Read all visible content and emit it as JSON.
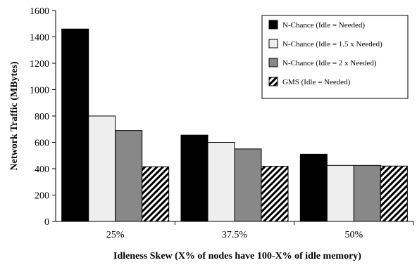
{
  "chart_data": {
    "type": "bar",
    "title": "",
    "xlabel": "Idleness Skew (X% of nodes have 100-X% of idle memory)",
    "ylabel": "Network Traffic (MBytes)",
    "ylim": [
      0,
      1600
    ],
    "yticks": [
      0,
      200,
      400,
      600,
      800,
      1000,
      1200,
      1400,
      1600
    ],
    "categories": [
      "25%",
      "37.5%",
      "50%"
    ],
    "series": [
      {
        "name": "N-Chance (Idle = Needed)",
        "values": [
          1460,
          655,
          510
        ],
        "color": "#000000",
        "pattern": "solid"
      },
      {
        "name": "N-Chance (Idle = 1.5 x Needed)",
        "values": [
          800,
          600,
          425
        ],
        "color": "#eeeeee",
        "pattern": "solid"
      },
      {
        "name": "N-Chance (Idle = 2 x Needed)",
        "values": [
          690,
          550,
          425
        ],
        "color": "#888888",
        "pattern": "solid"
      },
      {
        "name": "GMS (Idle = Needed)",
        "values": [
          415,
          418,
          420
        ],
        "color": "#000000",
        "pattern": "hatch"
      }
    ],
    "grid": false,
    "legend_position": "top-right"
  }
}
